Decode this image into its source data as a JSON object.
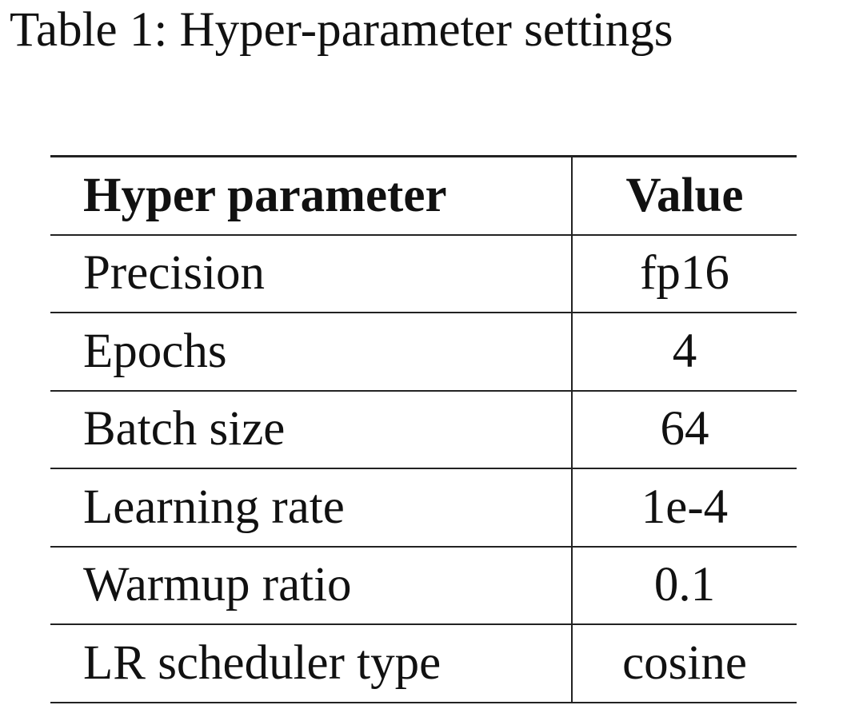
{
  "caption": "Table 1: Hyper-parameter settings",
  "table": {
    "header": [
      "Hyper parameter",
      "Value"
    ],
    "rows": [
      [
        "Precision",
        "fp16"
      ],
      [
        "Epochs",
        "4"
      ],
      [
        "Batch size",
        "64"
      ],
      [
        "Learning rate",
        "1e-4"
      ],
      [
        "Warmup ratio",
        "0.1"
      ],
      [
        "LR scheduler type",
        "cosine"
      ]
    ]
  }
}
